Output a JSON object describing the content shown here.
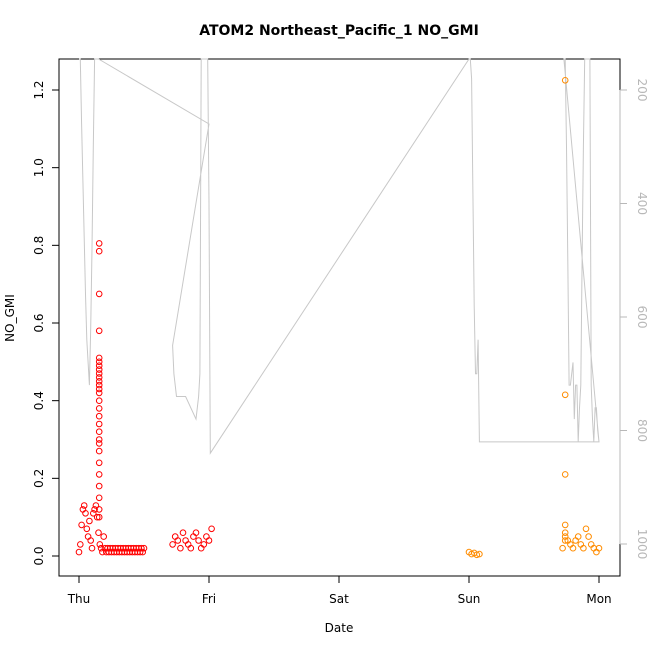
{
  "chart_data": {
    "type": "scatter",
    "title": "ATOM2 Northeast_Pacific_1 NO_GMI",
    "xlabel": "Date",
    "ylabel": "NO_GMI",
    "x_ticks": [
      "Thu",
      "Fri",
      "Sat",
      "Sun",
      "Mon"
    ],
    "y_ticks": [
      "0.0",
      "0.2",
      "0.4",
      "0.6",
      "0.8",
      "1.0",
      "1.2"
    ],
    "ylim": [
      -0.04,
      1.27
    ],
    "xlim": [
      -0.1,
      4.15
    ],
    "y2_ticks": [
      "200",
      "400",
      "600",
      "800",
      "1000"
    ],
    "y2lim": [
      1050,
      60
    ],
    "grid": false,
    "colors": {
      "series_a": "#ff0000",
      "series_b": "#ff8c00",
      "pressure_line": "#c8c8c8"
    },
    "series": [
      {
        "color": "#ff0000",
        "x": [
          0.0,
          0.01,
          0.02,
          0.03,
          0.04,
          0.05,
          0.06,
          0.07,
          0.08,
          0.09,
          0.1,
          0.11,
          0.12,
          0.13,
          0.14,
          0.15,
          0.16,
          0.17,
          0.18,
          0.19,
          0.2,
          0.21,
          0.22,
          0.23,
          0.24,
          0.25,
          0.26,
          0.27,
          0.28,
          0.29,
          0.3,
          0.31,
          0.32,
          0.33,
          0.34,
          0.35,
          0.36,
          0.37,
          0.38,
          0.39,
          0.4,
          0.41,
          0.42,
          0.43,
          0.44,
          0.45,
          0.46,
          0.47,
          0.48,
          0.49,
          0.5,
          0.155,
          0.155,
          0.155,
          0.155,
          0.155,
          0.155,
          0.155,
          0.155,
          0.155,
          0.155,
          0.155,
          0.155,
          0.155,
          0.155,
          0.155,
          0.155,
          0.155,
          0.155,
          0.155,
          0.155,
          0.155,
          0.155,
          0.155,
          0.155,
          0.155,
          0.155,
          0.155,
          0.155,
          0.72,
          0.74,
          0.76,
          0.78,
          0.8,
          0.82,
          0.84,
          0.86,
          0.88,
          0.9,
          0.92,
          0.94,
          0.96,
          0.98,
          1.0,
          1.02
        ],
        "y": [
          0.01,
          0.03,
          0.08,
          0.12,
          0.13,
          0.11,
          0.07,
          0.05,
          0.09,
          0.04,
          0.02,
          0.11,
          0.12,
          0.13,
          0.1,
          0.06,
          0.03,
          0.02,
          0.01,
          0.05,
          0.02,
          0.01,
          0.02,
          0.01,
          0.02,
          0.01,
          0.02,
          0.01,
          0.02,
          0.01,
          0.02,
          0.01,
          0.02,
          0.01,
          0.02,
          0.01,
          0.02,
          0.01,
          0.02,
          0.01,
          0.02,
          0.01,
          0.02,
          0.01,
          0.02,
          0.01,
          0.02,
          0.01,
          0.02,
          0.01,
          0.02,
          0.805,
          0.785,
          0.675,
          0.58,
          0.51,
          0.5,
          0.49,
          0.48,
          0.47,
          0.46,
          0.45,
          0.44,
          0.43,
          0.42,
          0.4,
          0.38,
          0.36,
          0.34,
          0.32,
          0.3,
          0.29,
          0.27,
          0.24,
          0.21,
          0.18,
          0.15,
          0.12,
          0.1,
          0.03,
          0.05,
          0.04,
          0.02,
          0.06,
          0.04,
          0.03,
          0.02,
          0.05,
          0.06,
          0.04,
          0.02,
          0.03,
          0.05,
          0.04,
          0.07
        ]
      },
      {
        "color": "#ff8c00",
        "x": [
          3.0,
          3.02,
          3.04,
          3.06,
          3.08,
          3.72,
          3.74,
          3.76,
          3.78,
          3.8,
          3.82,
          3.84,
          3.86,
          3.88,
          3.9,
          3.92,
          3.94,
          3.96,
          3.98,
          4.0,
          3.74,
          3.74,
          3.74,
          3.74,
          3.74,
          3.74
        ],
        "y": [
          0.01,
          0.005,
          0.008,
          0.003,
          0.005,
          0.02,
          0.05,
          0.04,
          0.03,
          0.02,
          0.04,
          0.05,
          0.03,
          0.02,
          0.07,
          0.05,
          0.03,
          0.02,
          0.01,
          0.02,
          1.225,
          0.415,
          0.21,
          0.08,
          0.06,
          0.04
        ]
      }
    ],
    "pressure_line": {
      "x": [
        0.0,
        0.01,
        0.02,
        0.03,
        0.04,
        0.05,
        0.06,
        0.07,
        0.08,
        0.09,
        0.1,
        0.11,
        0.12,
        0.13,
        0.14,
        0.15,
        1.0,
        0.72,
        0.73,
        0.74,
        0.75,
        0.76,
        0.8,
        0.82,
        0.9,
        0.91,
        0.92,
        0.93,
        0.94,
        0.95,
        0.96,
        0.97,
        0.98,
        0.99,
        1.0,
        1.01,
        3.0,
        3.01,
        3.02,
        3.03,
        3.04,
        3.05,
        3.06,
        3.07,
        3.08,
        3.09,
        3.1,
        4.0,
        3.73,
        3.74,
        3.75,
        3.76,
        3.77,
        3.78,
        3.79,
        3.8,
        3.81,
        3.82,
        3.83,
        3.84,
        3.85,
        3.86,
        3.87,
        3.88,
        3.89,
        3.9,
        3.91,
        3.92,
        3.93,
        3.94,
        3.95,
        3.96,
        3.97,
        3.98,
        3.99,
        4.0
      ],
      "y": [
        60,
        120,
        260,
        360,
        460,
        560,
        640,
        680,
        720,
        620,
        480,
        300,
        120,
        60,
        60,
        60,
        260,
        650,
        700,
        720,
        740,
        740,
        740,
        740,
        780,
        760,
        740,
        700,
        60,
        60,
        60,
        60,
        60,
        60,
        400,
        840,
        60,
        80,
        180,
        380,
        580,
        700,
        700,
        640,
        820,
        820,
        820,
        820,
        60,
        120,
        300,
        500,
        720,
        720,
        700,
        680,
        780,
        720,
        720,
        820,
        760,
        720,
        500,
        300,
        120,
        60,
        60,
        60,
        60,
        720,
        780,
        820,
        760,
        760,
        800,
        820
      ]
    }
  }
}
